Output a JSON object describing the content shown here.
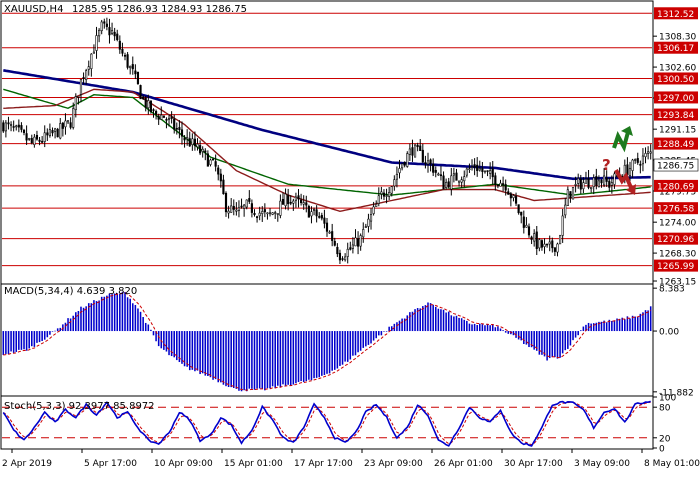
{
  "chart_data": {
    "type": "candlestick",
    "symbol": "XAUUSD,H4",
    "header_values": [
      "1285.95",
      "1286.93",
      "1284.93",
      "1286.75"
    ],
    "price_ylim": [
      1262.6,
      1314.6
    ],
    "price_ticks": [
      "1308.30",
      "1302.60",
      "1296.90",
      "1291.15",
      "1285.45",
      "1279.75",
      "1274.00",
      "1268.30",
      "1263.15"
    ],
    "levels": [
      {
        "label": "1312.52",
        "value": 1312.52
      },
      {
        "label": "1306.17",
        "value": 1306.17
      },
      {
        "label": "1300.50",
        "value": 1300.5
      },
      {
        "label": "1297.00",
        "value": 1297.0
      },
      {
        "label": "1293.84",
        "value": 1293.84
      },
      {
        "label": "1288.49",
        "value": 1288.49
      },
      {
        "label": "1280.69",
        "value": 1280.69
      },
      {
        "label": "1276.58",
        "value": 1276.58
      },
      {
        "label": "1270.96",
        "value": 1270.96
      },
      {
        "label": "1265.99",
        "value": 1265.99
      }
    ],
    "current_price": {
      "label": "1286.75",
      "value": 1286.75
    },
    "x_labels": [
      "2 Apr 2019",
      "5 Apr 17:00",
      "10 Apr 09:00",
      "15 Apr 01:00",
      "17 Apr 17:00",
      "23 Apr 09:00",
      "26 Apr 01:00",
      "30 Apr 17:00",
      "3 May 09:00",
      "8 May 01:00"
    ],
    "close_path": [
      [
        0,
        1292.0
      ],
      [
        6,
        1290.5
      ],
      [
        11,
        1288.5
      ],
      [
        16,
        1289.5
      ],
      [
        22,
        1291.0
      ],
      [
        26,
        1292.5
      ],
      [
        30,
        1300.0
      ],
      [
        34,
        1305.0
      ],
      [
        38,
        1310.0
      ],
      [
        42,
        1309.0
      ],
      [
        46,
        1305.0
      ],
      [
        50,
        1301.5
      ],
      [
        54,
        1296.5
      ],
      [
        58,
        1294.0
      ],
      [
        62,
        1293.5
      ],
      [
        66,
        1291.5
      ],
      [
        70,
        1289.5
      ],
      [
        74,
        1288.0
      ],
      [
        78,
        1286.0
      ],
      [
        82,
        1284.0
      ],
      [
        86,
        1277.0
      ],
      [
        90,
        1275.5
      ],
      [
        94,
        1277.0
      ],
      [
        98,
        1276.0
      ],
      [
        102,
        1275.0
      ],
      [
        106,
        1276.5
      ],
      [
        110,
        1278.5
      ],
      [
        114,
        1277.5
      ],
      [
        118,
        1276.0
      ],
      [
        122,
        1275.0
      ],
      [
        126,
        1272.0
      ],
      [
        130,
        1268.0
      ],
      [
        134,
        1269.0
      ],
      [
        138,
        1271.0
      ],
      [
        142,
        1275.0
      ],
      [
        146,
        1279.0
      ],
      [
        150,
        1281.0
      ],
      [
        154,
        1285.0
      ],
      [
        158,
        1287.5
      ],
      [
        162,
        1286.0
      ],
      [
        166,
        1284.0
      ],
      [
        170,
        1281.0
      ],
      [
        174,
        1282.0
      ],
      [
        178,
        1283.0
      ],
      [
        182,
        1284.5
      ],
      [
        186,
        1283.0
      ],
      [
        190,
        1282.0
      ],
      [
        194,
        1281.0
      ],
      [
        198,
        1277.0
      ],
      [
        202,
        1273.0
      ],
      [
        206,
        1270.0
      ],
      [
        210,
        1269.0
      ],
      [
        214,
        1270.0
      ],
      [
        218,
        1279.0
      ],
      [
        222,
        1281.0
      ],
      [
        226,
        1281.5
      ],
      [
        230,
        1282.0
      ],
      [
        234,
        1281.0
      ],
      [
        238,
        1283.0
      ],
      [
        242,
        1284.0
      ],
      [
        246,
        1285.5
      ],
      [
        250,
        1286.75
      ]
    ],
    "bar_count": 251,
    "ma_series": [
      {
        "color": "#000080",
        "points": [
          [
            0,
            1302.0
          ],
          [
            50,
            1298.0
          ],
          [
            100,
            1291.0
          ],
          [
            150,
            1285.0
          ],
          [
            190,
            1284.0
          ],
          [
            220,
            1282.0
          ],
          [
            250,
            1282.3
          ]
        ]
      },
      {
        "color": "#006400",
        "points": [
          [
            0,
            1298.5
          ],
          [
            25,
            1295.0
          ],
          [
            35,
            1297.5
          ],
          [
            50,
            1297.0
          ],
          [
            80,
            1286.0
          ],
          [
            110,
            1281.0
          ],
          [
            150,
            1279.0
          ],
          [
            190,
            1281.0
          ],
          [
            220,
            1279.0
          ],
          [
            250,
            1280.5
          ]
        ]
      },
      {
        "color": "#8b1a1a",
        "points": [
          [
            0,
            1295.0
          ],
          [
            20,
            1295.5
          ],
          [
            35,
            1298.5
          ],
          [
            50,
            1298.0
          ],
          [
            70,
            1292.0
          ],
          [
            90,
            1283.5
          ],
          [
            110,
            1279.0
          ],
          [
            130,
            1276.0
          ],
          [
            150,
            1278.0
          ],
          [
            170,
            1280.0
          ],
          [
            190,
            1280.0
          ],
          [
            205,
            1278.0
          ],
          [
            220,
            1278.5
          ],
          [
            250,
            1279.5
          ]
        ]
      }
    ],
    "macd": {
      "label": "MACD(5,34,4) 4.639 3.820",
      "ylim": [
        -12.5,
        9.0
      ],
      "ticks": [
        {
          "label": "8.383",
          "value": 8.383
        },
        {
          "label": "0.00",
          "value": 0
        },
        {
          "label": "-11.882",
          "value": -11.882
        }
      ],
      "hist_path": [
        [
          0,
          -4.5
        ],
        [
          10,
          -3.5
        ],
        [
          20,
          0.0
        ],
        [
          30,
          4.5
        ],
        [
          40,
          7.0
        ],
        [
          47,
          7.5
        ],
        [
          52,
          4.5
        ],
        [
          56,
          1.0
        ],
        [
          60,
          -3.0
        ],
        [
          70,
          -7.0
        ],
        [
          80,
          -9.0
        ],
        [
          90,
          -11.5
        ],
        [
          100,
          -11.5
        ],
        [
          110,
          -10.5
        ],
        [
          120,
          -9.5
        ],
        [
          130,
          -7.0
        ],
        [
          140,
          -3.0
        ],
        [
          150,
          1.0
        ],
        [
          160,
          4.5
        ],
        [
          165,
          5.5
        ],
        [
          170,
          4.0
        ],
        [
          180,
          1.5
        ],
        [
          190,
          1.0
        ],
        [
          200,
          -2.0
        ],
        [
          210,
          -5.5
        ],
        [
          215,
          -5.0
        ],
        [
          220,
          -2.0
        ],
        [
          225,
          1.5
        ],
        [
          235,
          2.0
        ],
        [
          245,
          3.0
        ],
        [
          250,
          4.6
        ]
      ]
    },
    "stoch": {
      "label": "Stoch(5,3,3) 92.3977 85.8972",
      "ylim": [
        0,
        100
      ],
      "ticks": [
        {
          "label": "100",
          "value": 100
        },
        {
          "label": "80",
          "value": 80
        },
        {
          "label": "20",
          "value": 20
        },
        {
          "label": "0",
          "value": 0
        }
      ],
      "levels": [
        80,
        20
      ],
      "main_path": [
        [
          0,
          70
        ],
        [
          4,
          35
        ],
        [
          8,
          15
        ],
        [
          12,
          40
        ],
        [
          16,
          70
        ],
        [
          20,
          50
        ],
        [
          24,
          75
        ],
        [
          28,
          60
        ],
        [
          32,
          85
        ],
        [
          36,
          65
        ],
        [
          40,
          90
        ],
        [
          44,
          60
        ],
        [
          48,
          70
        ],
        [
          52,
          40
        ],
        [
          56,
          15
        ],
        [
          60,
          8
        ],
        [
          64,
          30
        ],
        [
          68,
          70
        ],
        [
          72,
          55
        ],
        [
          76,
          15
        ],
        [
          80,
          25
        ],
        [
          84,
          60
        ],
        [
          88,
          45
        ],
        [
          92,
          10
        ],
        [
          96,
          35
        ],
        [
          100,
          80
        ],
        [
          104,
          55
        ],
        [
          108,
          20
        ],
        [
          112,
          10
        ],
        [
          116,
          40
        ],
        [
          120,
          85
        ],
        [
          124,
          60
        ],
        [
          128,
          20
        ],
        [
          132,
          10
        ],
        [
          136,
          30
        ],
        [
          140,
          70
        ],
        [
          144,
          85
        ],
        [
          148,
          60
        ],
        [
          152,
          20
        ],
        [
          156,
          40
        ],
        [
          160,
          85
        ],
        [
          164,
          65
        ],
        [
          168,
          15
        ],
        [
          172,
          5
        ],
        [
          176,
          40
        ],
        [
          180,
          80
        ],
        [
          184,
          60
        ],
        [
          188,
          50
        ],
        [
          192,
          75
        ],
        [
          196,
          30
        ],
        [
          200,
          10
        ],
        [
          204,
          5
        ],
        [
          208,
          40
        ],
        [
          212,
          85
        ],
        [
          216,
          90
        ],
        [
          220,
          88
        ],
        [
          224,
          75
        ],
        [
          228,
          40
        ],
        [
          232,
          70
        ],
        [
          236,
          78
        ],
        [
          240,
          50
        ],
        [
          244,
          85
        ],
        [
          248,
          90
        ],
        [
          250,
          92.4
        ]
      ]
    },
    "arrow_colors": {
      "up": "#1e7a1e",
      "down": "#b22222",
      "question": "#b22222"
    },
    "question_mark": "?",
    "colors": {
      "bull_body": "#000000",
      "bear_body": "#ffffff",
      "level": "#cc0000",
      "macd": "#0000cc",
      "stoch": "#0000cc",
      "signal": "#cc0000",
      "label_bg": "#cc0000",
      "label_text": "#ffffff"
    }
  }
}
